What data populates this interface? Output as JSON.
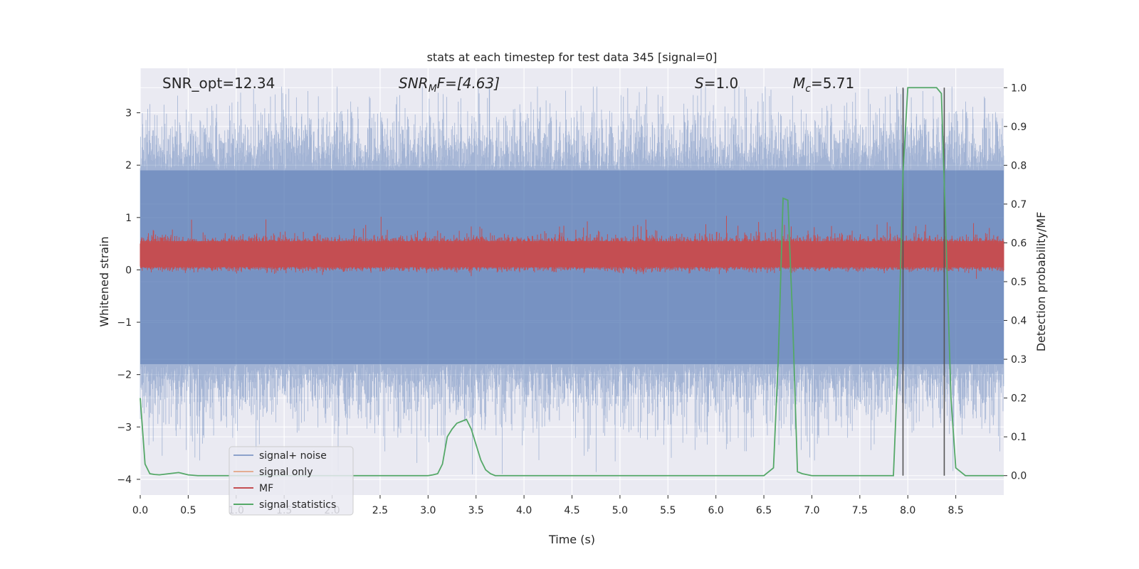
{
  "chart_data": {
    "type": "line",
    "title": "stats at each timestep for test data 345 [signal=0]",
    "xlabel": "Time (s)",
    "ylabel": "Whitened strain",
    "ylabel_right": "Detection probability/MF",
    "xlim": [
      0,
      9.0
    ],
    "ylim": [
      -4.3,
      3.85
    ],
    "ylim_right": [
      -0.05,
      1.05
    ],
    "x_ticks": [
      "0.0",
      "0.5",
      "1.0",
      "1.5",
      "2.0",
      "2.5",
      "3.0",
      "3.5",
      "4.0",
      "4.5",
      "5.0",
      "5.5",
      "6.0",
      "6.5",
      "7.0",
      "7.5",
      "8.0",
      "8.5"
    ],
    "y_ticks": [
      "−4",
      "−3",
      "−2",
      "−1",
      "0",
      "1",
      "2",
      "3"
    ],
    "y_ticks_right": [
      "0.0",
      "0.1",
      "0.2",
      "0.3",
      "0.4",
      "0.5",
      "0.6",
      "0.7",
      "0.8",
      "0.9",
      "1.0"
    ],
    "annotations": {
      "snr_opt": "SNR_opt=12.34",
      "snr_mf_base": "SNR",
      "snr_mf_sub": "M",
      "snr_mf_rest": "F=[4.63]",
      "s_var": "S",
      "s_val": "=1.0",
      "mc_var": "M",
      "mc_sub": "c",
      "mc_val": "=5.71"
    },
    "legend": {
      "placement": "lower-left",
      "entries": [
        "signal+ noise",
        "signal only",
        "MF",
        "signal statistics"
      ]
    },
    "grid": true,
    "colors": {
      "background": "#eaeaf2",
      "grid": "#ffffff",
      "noise": "#4c72b0",
      "signal_only": "#dd8452",
      "mf": "#c44e52",
      "stats": "#55a868",
      "vlines": "#555555"
    },
    "vertical_lines_x": [
      7.95,
      8.38
    ],
    "noise_band_y": [
      -1.8,
      1.9
    ],
    "mf_band_y": [
      0.05,
      0.55
    ],
    "series_stats": {
      "name": "signal statistics",
      "x": [
        0.0,
        0.05,
        0.1,
        0.15,
        0.2,
        0.3,
        0.4,
        0.45,
        0.5,
        0.6,
        0.8,
        1.0,
        1.5,
        2.0,
        2.5,
        3.0,
        3.05,
        3.1,
        3.15,
        3.2,
        3.25,
        3.3,
        3.35,
        3.4,
        3.45,
        3.5,
        3.55,
        3.6,
        3.65,
        3.7,
        4.0,
        5.0,
        6.0,
        6.5,
        6.6,
        6.65,
        6.7,
        6.75,
        6.8,
        6.85,
        6.9,
        7.0,
        7.5,
        7.85,
        7.9,
        7.95,
        8.0,
        8.1,
        8.2,
        8.3,
        8.35,
        8.4,
        8.45,
        8.5,
        8.6,
        9.0
      ],
      "y": [
        0.2,
        0.03,
        0.005,
        0.003,
        0.002,
        0.005,
        0.008,
        0.005,
        0.002,
        0.0,
        0.0,
        0.0,
        0.0,
        0.0,
        0.0,
        0.0,
        0.002,
        0.005,
        0.03,
        0.1,
        0.12,
        0.135,
        0.14,
        0.145,
        0.12,
        0.08,
        0.04,
        0.015,
        0.005,
        0.0,
        0.0,
        0.0,
        0.0,
        0.0,
        0.02,
        0.3,
        0.715,
        0.71,
        0.4,
        0.01,
        0.005,
        0.0,
        0.0,
        0.0,
        0.3,
        0.78,
        1.0,
        1.0,
        1.0,
        1.0,
        0.985,
        0.6,
        0.2,
        0.02,
        0.0,
        0.0
      ]
    }
  }
}
